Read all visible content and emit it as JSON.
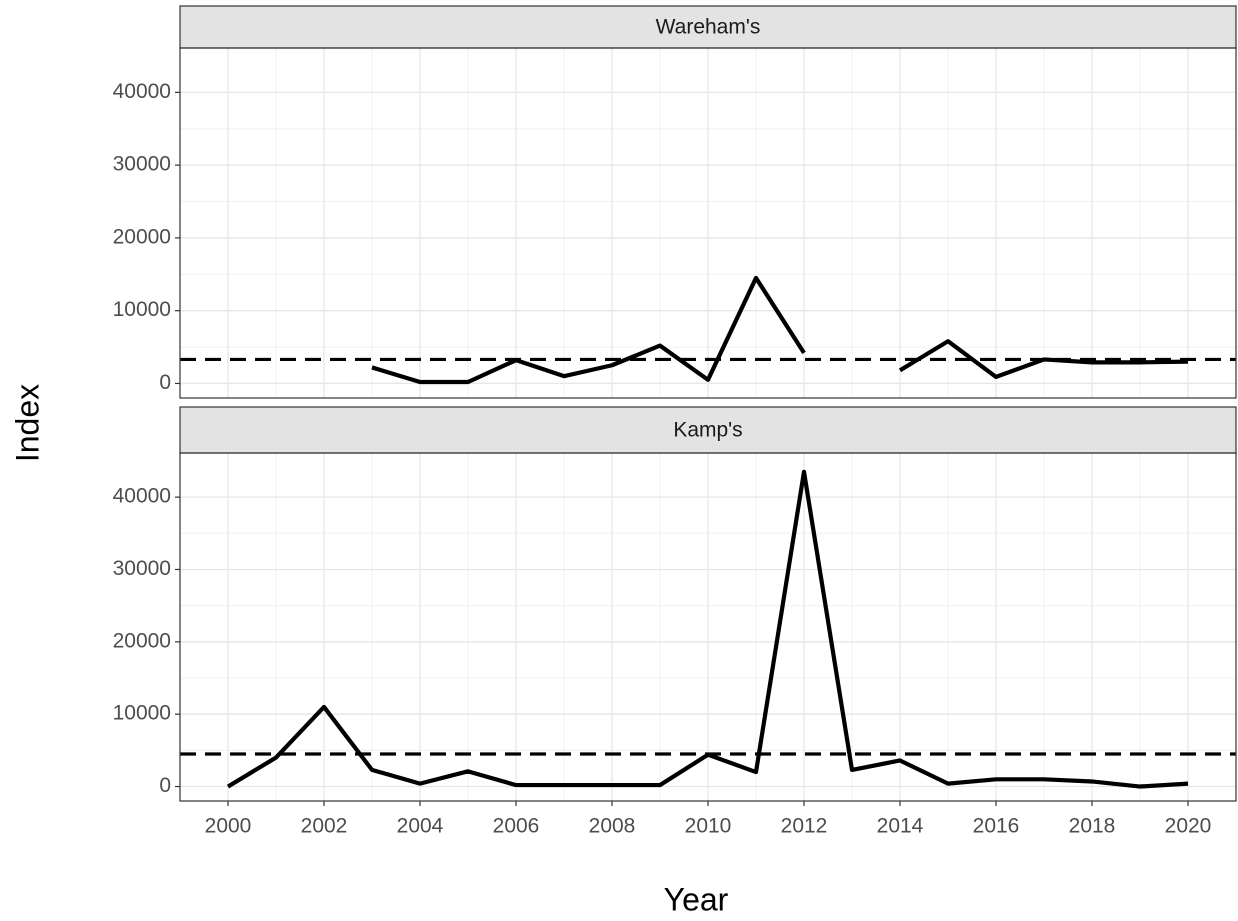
{
  "chart_data": {
    "type": "line",
    "xlabel": "Year",
    "ylabel": "Index",
    "x": [
      2000,
      2001,
      2002,
      2003,
      2004,
      2005,
      2006,
      2007,
      2008,
      2009,
      2010,
      2011,
      2012,
      2013,
      2014,
      2015,
      2016,
      2017,
      2018,
      2019,
      2020
    ],
    "xlim": [
      1999,
      2021
    ],
    "xticks": [
      2000,
      2002,
      2004,
      2006,
      2008,
      2010,
      2012,
      2014,
      2016,
      2018,
      2020
    ],
    "ylim": [
      -2000,
      46100
    ],
    "yticks": [
      0,
      10000,
      20000,
      30000,
      40000
    ],
    "grid": true,
    "color": "#000000",
    "panels": [
      {
        "title": "Wareham's",
        "reference": 3300,
        "values": [
          null,
          null,
          null,
          2200,
          200,
          200,
          3200,
          1000,
          2500,
          5200,
          500,
          14500,
          4200,
          null,
          1800,
          5800,
          900,
          3300,
          2900,
          2900,
          3000
        ]
      },
      {
        "title": "Kamp's",
        "reference": 4500,
        "values": [
          0,
          4000,
          11000,
          2300,
          400,
          2100,
          200,
          200,
          200,
          200,
          4400,
          2000,
          43500,
          2300,
          3600,
          400,
          1000,
          1000,
          700,
          0,
          400
        ]
      }
    ]
  }
}
